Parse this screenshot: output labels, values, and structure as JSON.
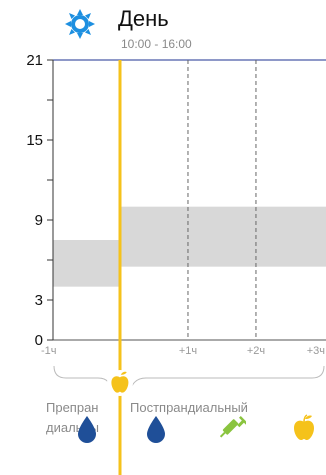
{
  "header": {
    "title": "День",
    "time_range": "10:00 - 16:00",
    "icon": "sun-icon"
  },
  "chart_data": {
    "type": "area",
    "y_ticks": [
      "21",
      "15",
      "9",
      "3",
      "0"
    ],
    "y_tick_values": [
      21,
      15,
      9,
      3,
      0
    ],
    "ylim": [
      0,
      21
    ],
    "x_ticks": [
      "-1ч",
      "+1ч",
      "+2ч",
      "+3ч"
    ],
    "x_tick_values": [
      -1,
      1,
      2,
      3
    ],
    "xlim": [
      -1,
      3
    ],
    "meal_time": 0,
    "target_ranges": [
      {
        "name": "Препрандиальный",
        "x": [
          -1,
          0
        ],
        "y": [
          4,
          7.5
        ]
      },
      {
        "name": "Постпрандиальный",
        "x": [
          0,
          3
        ],
        "y": [
          5.5,
          10
        ]
      }
    ],
    "grid_verticals": [
      1,
      2
    ],
    "colors": {
      "band": "#d8d8d8",
      "meal_line": "#f5c21b",
      "top_line": "#4a5aa8",
      "grid": "#666666"
    }
  },
  "periods": {
    "pre": "Препрандиальный",
    "pre_line1": "Препран",
    "pre_line2": "диальны",
    "post": "Постпрандиальный"
  },
  "bottom_icons": [
    {
      "name": "blood-drop-icon",
      "color": "#1f4f98"
    },
    {
      "name": "blood-drop-icon",
      "color": "#1f4f98"
    },
    {
      "name": "insulin-pen-icon",
      "color": "#8ac43f"
    },
    {
      "name": "apple-icon",
      "color": "#f5c21b"
    }
  ]
}
